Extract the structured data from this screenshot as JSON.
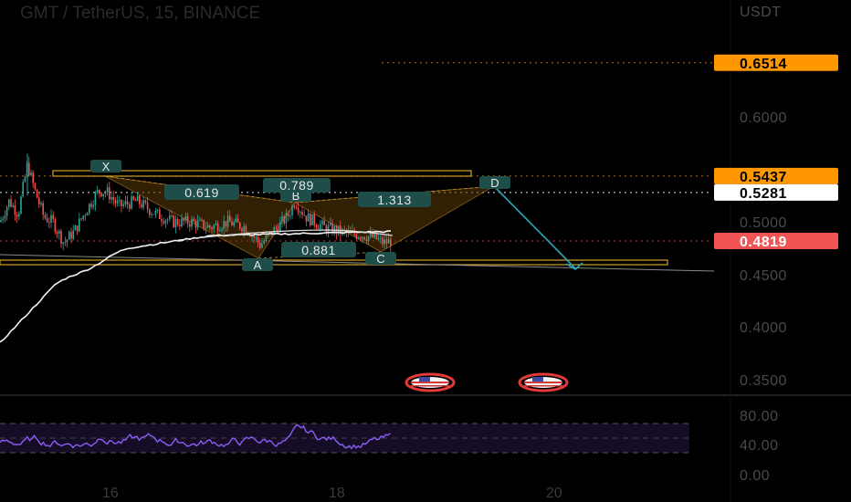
{
  "header": {
    "title": "GMT / TetherUS, 15, BINANCE"
  },
  "chart_data": {
    "type": "candlestick",
    "symbol": "GMT / TetherUS",
    "interval": "15",
    "exchange": "BINANCE",
    "currency": "USDT",
    "ylim": [
      0.335,
      0.7
    ],
    "y_ticks": [
      "0.6000",
      "0.5000",
      "0.4500",
      "0.4000",
      "0.3500"
    ],
    "x_ticks": [
      "16",
      "18",
      "20"
    ],
    "price_tags": [
      {
        "label": "0.6514",
        "value": 0.6514,
        "color": "#ff9800",
        "text_color": "#000000",
        "line": "dotted"
      },
      {
        "label": "0.5437",
        "value": 0.5437,
        "color": "#ff9800",
        "text_color": "#000000",
        "line": "dotted"
      },
      {
        "label": "0.5281",
        "value": 0.5281,
        "color": "#ffffff",
        "text_color": "#000000",
        "line": "dotted-white"
      },
      {
        "label": "0.4819",
        "value": 0.4819,
        "color": "#f05454",
        "text_color": "#ffffff",
        "line": "dotted"
      }
    ],
    "harmonic_pattern": {
      "points": [
        {
          "label": "X",
          "price": 0.548
        },
        {
          "label": "A",
          "price": 0.474
        },
        {
          "label": "B",
          "price": 0.52
        },
        {
          "label": "C",
          "price": 0.479
        },
        {
          "label": "D",
          "price": 0.5281
        }
      ],
      "ratios": [
        "0.619",
        "0.789",
        "0.881",
        "1.313"
      ]
    },
    "projection_target": 0.458,
    "rsi": {
      "ticks": [
        "80.00",
        "40.00",
        "0.00"
      ],
      "upper_band": 70,
      "lower_band": 30
    }
  },
  "colors": {
    "pattern_fill": "#8a5a12",
    "pattern_line": "#d4952a",
    "projection": "#2aa8b8",
    "rsi_line": "#8b5cf6",
    "candle_up": "#26a69a",
    "candle_down": "#ef5350"
  },
  "icons": [
    "us-flag-event-icon",
    "us-flag-event-icon"
  ]
}
